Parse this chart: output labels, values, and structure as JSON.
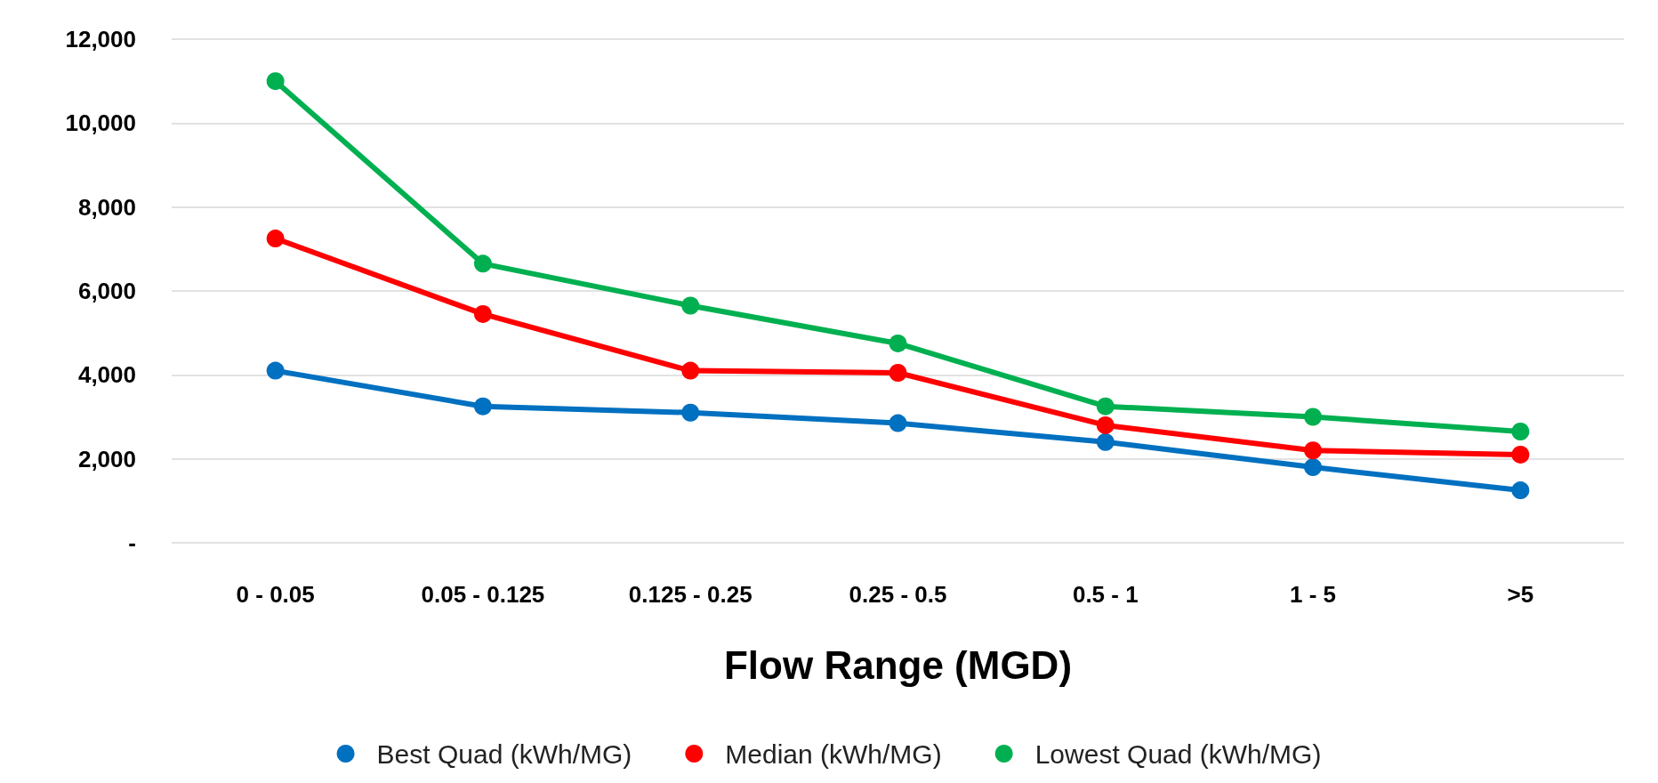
{
  "chart_data": {
    "type": "line",
    "xlabel": "Flow Range (MGD)",
    "categories": [
      "0 - 0.05",
      "0.05 - 0.125",
      "0.125 - 0.25",
      "0.25 - 0.5",
      "0.5 - 1",
      "1 - 5",
      ">5"
    ],
    "series": [
      {
        "name": "Best Quad (kWh/MG)",
        "color": "#0070c0",
        "values": [
          4100,
          3250,
          3100,
          2850,
          2400,
          1800,
          1250
        ]
      },
      {
        "name": "Median (kWh/MG)",
        "color": "#ff0000",
        "values": [
          7250,
          5450,
          4100,
          4050,
          2800,
          2200,
          2100
        ]
      },
      {
        "name": "Lowest Quad (kWh/MG)",
        "color": "#00b050",
        "values": [
          11000,
          6650,
          5650,
          4750,
          3250,
          3000,
          2650
        ]
      }
    ],
    "ylim": [
      0,
      12000
    ],
    "yticks": [
      {
        "value": 0,
        "label": "-"
      },
      {
        "value": 2000,
        "label": "2,000"
      },
      {
        "value": 4000,
        "label": "4,000"
      },
      {
        "value": 6000,
        "label": "6,000"
      },
      {
        "value": 8000,
        "label": "8,000"
      },
      {
        "value": 10000,
        "label": "10,000"
      },
      {
        "value": 12000,
        "label": "12,000"
      }
    ],
    "grid": "y",
    "legend": "bottom",
    "marker": "circle",
    "line_style": "solid"
  }
}
